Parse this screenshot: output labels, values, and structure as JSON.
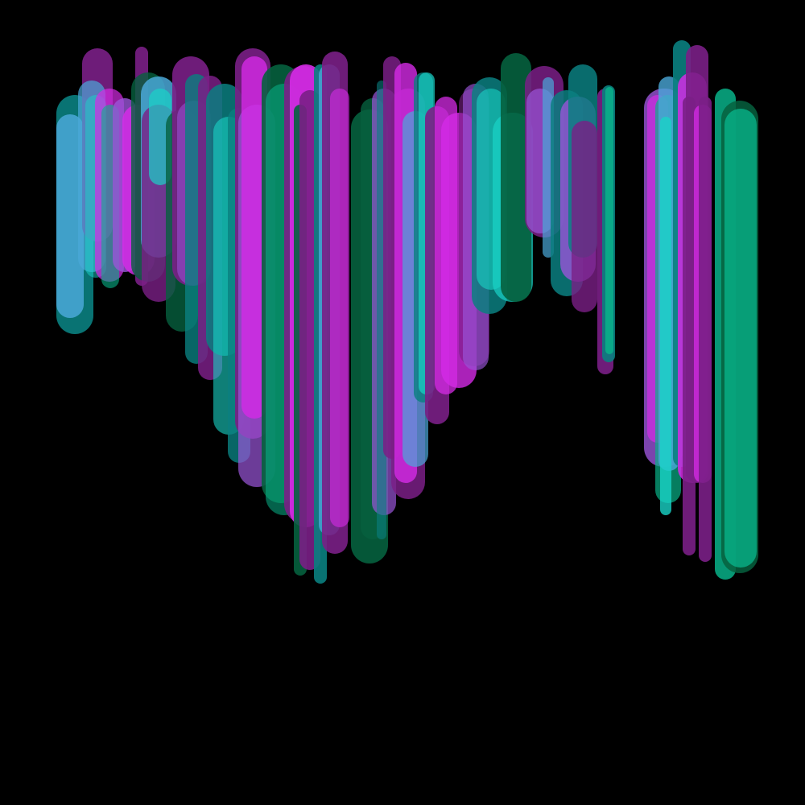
{
  "artwork": {
    "background": "#000000",
    "palette": {
      "magenta": "#d52be6",
      "dark_magenta": "#7a1f86",
      "teal": "#0a7f80",
      "dark_green": "#06603e",
      "green": "#08b288",
      "cyan": "#19d3c7",
      "light_blue": "#4aa8d8",
      "violet": "#9a55d8"
    }
  }
}
